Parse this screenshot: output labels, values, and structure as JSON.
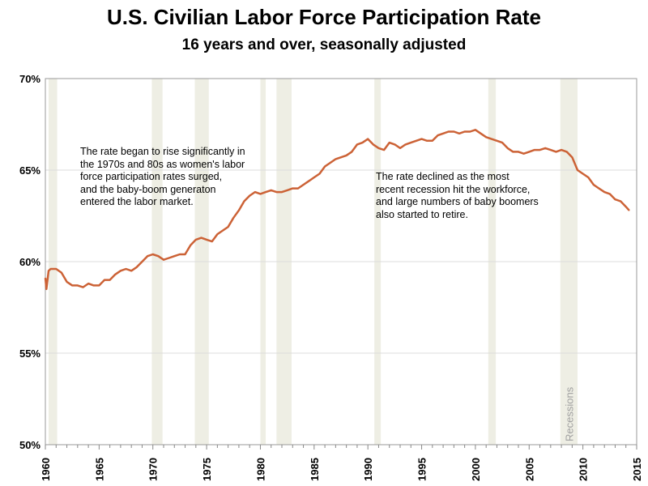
{
  "chart_data": {
    "type": "line",
    "title": "U.S. Civilian Labor Force Participation Rate",
    "subtitle": "16 years and over, seasonally adjusted",
    "xlabel": "",
    "ylabel": "",
    "xlim": [
      1960,
      2015
    ],
    "ylim": [
      50,
      70
    ],
    "x_ticks": [
      "1960",
      "1965",
      "1970",
      "1975",
      "1980",
      "1985",
      "1990",
      "1995",
      "2000",
      "2005",
      "2010",
      "2015"
    ],
    "y_ticks": [
      {
        "v": 50,
        "label": "50%"
      },
      {
        "v": 55,
        "label": "55%"
      },
      {
        "v": 60,
        "label": "60%"
      },
      {
        "v": 65,
        "label": "65%"
      },
      {
        "v": 70,
        "label": "70%"
      }
    ],
    "grid": true,
    "line_color": "#cc6236",
    "recession_color": "#eeeee4",
    "recession_label": "Recessions",
    "recessions": [
      [
        1960.3,
        1961.1
      ],
      [
        1969.9,
        1970.9
      ],
      [
        1973.9,
        1975.2
      ],
      [
        1980.0,
        1980.5
      ],
      [
        1981.5,
        1982.9
      ],
      [
        1990.6,
        1991.2
      ],
      [
        2001.2,
        2001.9
      ],
      [
        2007.9,
        2009.5
      ]
    ],
    "series": [
      {
        "name": "Participation rate",
        "x": [
          1960.0,
          1960.1,
          1960.3,
          1960.5,
          1961.0,
          1961.5,
          1962.0,
          1962.5,
          1963.0,
          1963.5,
          1964.0,
          1964.5,
          1965.0,
          1965.5,
          1966.0,
          1966.5,
          1967.0,
          1967.5,
          1968.0,
          1968.5,
          1969.0,
          1969.5,
          1970.0,
          1970.5,
          1971.0,
          1971.5,
          1972.0,
          1972.5,
          1973.0,
          1973.5,
          1974.0,
          1974.5,
          1975.0,
          1975.5,
          1976.0,
          1976.5,
          1977.0,
          1977.5,
          1978.0,
          1978.5,
          1979.0,
          1979.5,
          1980.0,
          1980.5,
          1981.0,
          1981.5,
          1982.0,
          1982.5,
          1983.0,
          1983.5,
          1984.0,
          1984.5,
          1985.0,
          1985.5,
          1986.0,
          1986.5,
          1987.0,
          1987.5,
          1988.0,
          1988.5,
          1989.0,
          1989.5,
          1990.0,
          1990.5,
          1991.0,
          1991.5,
          1992.0,
          1992.5,
          1993.0,
          1993.5,
          1994.0,
          1994.5,
          1995.0,
          1995.5,
          1996.0,
          1996.5,
          1997.0,
          1997.5,
          1998.0,
          1998.5,
          1999.0,
          1999.5,
          2000.0,
          2000.5,
          2001.0,
          2001.5,
          2002.0,
          2002.5,
          2003.0,
          2003.5,
          2004.0,
          2004.5,
          2005.0,
          2005.5,
          2006.0,
          2006.5,
          2007.0,
          2007.5,
          2008.0,
          2008.5,
          2009.0,
          2009.5,
          2010.0,
          2010.5,
          2011.0,
          2011.5,
          2012.0,
          2012.5,
          2013.0,
          2013.5,
          2014.0,
          2014.3
        ],
        "values": [
          59.1,
          58.5,
          59.5,
          59.6,
          59.6,
          59.4,
          58.9,
          58.7,
          58.7,
          58.6,
          58.8,
          58.7,
          58.7,
          59.0,
          59.0,
          59.3,
          59.5,
          59.6,
          59.5,
          59.7,
          60.0,
          60.3,
          60.4,
          60.3,
          60.1,
          60.2,
          60.3,
          60.4,
          60.4,
          60.9,
          61.2,
          61.3,
          61.2,
          61.1,
          61.5,
          61.7,
          61.9,
          62.4,
          62.8,
          63.3,
          63.6,
          63.8,
          63.7,
          63.8,
          63.9,
          63.8,
          63.8,
          63.9,
          64.0,
          64.0,
          64.2,
          64.4,
          64.6,
          64.8,
          65.2,
          65.4,
          65.6,
          65.7,
          65.8,
          66.0,
          66.4,
          66.5,
          66.7,
          66.4,
          66.2,
          66.1,
          66.5,
          66.4,
          66.2,
          66.4,
          66.5,
          66.6,
          66.7,
          66.6,
          66.6,
          66.9,
          67.0,
          67.1,
          67.1,
          67.0,
          67.1,
          67.1,
          67.2,
          67.0,
          66.8,
          66.7,
          66.6,
          66.5,
          66.2,
          66.0,
          66.0,
          65.9,
          66.0,
          66.1,
          66.1,
          66.2,
          66.1,
          66.0,
          66.1,
          66.0,
          65.7,
          65.0,
          64.8,
          64.6,
          64.2,
          64.0,
          63.8,
          63.7,
          63.4,
          63.3,
          63.0,
          62.8
        ]
      }
    ],
    "annotations": [
      "The rate began to rise significantly in\nthe 1970s and 80s as women's labor\nforce participation rates surged,\nand the baby-boom generaton\nentered the labor market.",
      "The rate declined as the most\nrecent recession hit the workforce,\nand large numbers of baby boomers\nalso started to retire."
    ]
  }
}
